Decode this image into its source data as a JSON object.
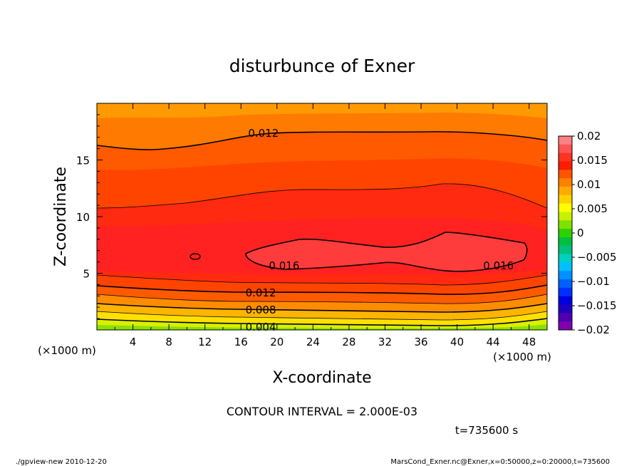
{
  "chart_data": {
    "type": "contour",
    "title": "disturbunce of Exner",
    "xlabel": "X-coordinate",
    "ylabel": "Z-coordinate",
    "x_unit": "(×1000 m)",
    "y_unit": "(×1000 m)",
    "xlim": [
      0,
      50
    ],
    "ylim": [
      0,
      20
    ],
    "x_ticks": [
      4,
      8,
      12,
      16,
      20,
      24,
      28,
      32,
      36,
      40,
      44,
      48
    ],
    "y_ticks": [
      5,
      10,
      15
    ],
    "contour_labels": [
      {
        "text": "0.012",
        "x": 18.5,
        "z": 17.3
      },
      {
        "text": "0.016",
        "x": 20.8,
        "z": 5.6
      },
      {
        "text": "0.016",
        "x": 44.6,
        "z": 5.6
      },
      {
        "text": "0.012",
        "x": 18.2,
        "z": 3.2
      },
      {
        "text": "0.008",
        "x": 18.2,
        "z": 1.7
      },
      {
        "text": "0.004",
        "x": 18.2,
        "z": 0.2
      }
    ],
    "colorbar": {
      "labels": [
        "0.02",
        "0.015",
        "0.01",
        "0.005",
        "0",
        "−0.005",
        "−0.01",
        "−0.015",
        "−0.02"
      ],
      "colors": [
        "#ff8080",
        "#ff5555",
        "#ff3322",
        "#ff1a00",
        "#ff5500",
        "#ff8000",
        "#ffaa00",
        "#ffd000",
        "#ffff00",
        "#c8f000",
        "#80e000",
        "#30d000",
        "#00c040",
        "#00c080",
        "#00d0c0",
        "#00c0ff",
        "#0090ff",
        "#0060ff",
        "#0030ff",
        "#0000e0",
        "#2000c0",
        "#5000b0",
        "#8000b0"
      ]
    }
  },
  "footer": {
    "contour_interval": "CONTOUR INTERVAL = 2.000E-03",
    "time": "t=735600 s",
    "program": "./gpview-new 2010-12-20",
    "source": "MarsCond_Exner.nc@Exner,x=0:50000,z=0:20000,t=735600"
  }
}
